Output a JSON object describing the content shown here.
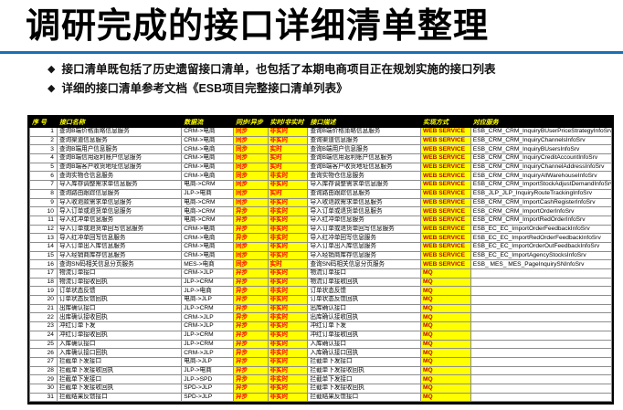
{
  "slide": {
    "title": "调研完成的接口详细清单整理",
    "bullets": [
      "接口清单既包括了历史遗留接口清单，也包括了本期电商项目正在规划实施的接口列表",
      "详细的接口清单参考文档《ESB项目完整接口清单列表》"
    ],
    "accent_color": "#1a6fba"
  },
  "table": {
    "columns": [
      "序 号",
      "接口名称",
      "数据流",
      "同步/异步",
      "实时/非实时",
      "接口描述",
      "实现方式",
      "对应服务"
    ],
    "header_bg": "#000000",
    "header_text_color": "#ffff00",
    "highlight_bg": "#ffff00",
    "sync_text_color": "#ff0000",
    "impl_text_color": "#c00000",
    "rows": [
      [
        1,
        "查询B端价格策略信息服务",
        "CRM->电商",
        "同步",
        "非实时",
        "查询B端价格策略信息服务",
        "WEB SERVICE",
        "ESB_CRM_CRM_InquiryBUserPriceStrategyInfoSrv"
      ],
      [
        2,
        "查询渠道信息服务",
        "CRM->电商",
        "同步",
        "非实时",
        "查询渠道信息服务",
        "WEB SERVICE",
        "ESB_CRM_CRM_InquiryChannelsInfoSrv"
      ],
      [
        3,
        "查询B端用户信息服务",
        "CRM->电商",
        "同步",
        "实时",
        "查询B端用户信息服务",
        "WEB SERVICE",
        "ESB_CRM_CRM_InquiryBUsersInfoSrv"
      ],
      [
        4,
        "查询B端信用返利账户信息服务",
        "CRM->电商",
        "同步",
        "实时",
        "查询B端信用返利账户信息服务",
        "WEB SERVICE",
        "ESB_CRM_CRM_InquiryCreditAccountInfoSrv"
      ],
      [
        5,
        "查询B端客户收货地址信息服务",
        "CRM->电商",
        "同步",
        "实时",
        "查询B端客户收货地址信息服务",
        "WEB SERVICE",
        "ESB_CRM_CRM_InquiryChannelAddressInfoSrv"
      ],
      [
        6,
        "查询实物仓信息服务",
        "CRM->电商",
        "同步",
        "非实时",
        "查询实物仓信息服务",
        "WEB SERVICE",
        "ESB_CRM_CRM_InquiryAllWarehouseInfoSrv"
      ],
      [
        7,
        "导入库存调整需求单信息服务",
        "电商->CRM",
        "同步",
        "非实时",
        "导入库存调整需求单信息服务",
        "WEB SERVICE",
        "ESB_CRM_CRM_ImportStockAdjustDemandInfoSrv"
      ],
      [
        8,
        "查询路由跟踪信息服务",
        "JLP->电商",
        "同步",
        "实时",
        "查询路由跟踪信息服务",
        "WEB SERVICE",
        "ESB_JLP_JLP_InquiryRouteTrackingInfoSrv"
      ],
      [
        9,
        "导入收退款需求单信息服务",
        "电商->CRM",
        "同步",
        "非实时",
        "导入收退款需求单信息服务",
        "WEB SERVICE",
        "ESB_CRM_CRM_ImportCashRegisterInfoSrv"
      ],
      [
        10,
        "导入订单或退货单信息服务",
        "电商->CRM",
        "异步",
        "非实时",
        "导入订单或退货单信息服务",
        "WEB SERVICE",
        "ESB_CRM_CRM_ImportOrderInfoSrv"
      ],
      [
        11,
        "导入红冲单信息服务",
        "电商->CRM",
        "异步",
        "非实时",
        "导入红冲单信息服务",
        "WEB SERVICE",
        "ESB_CRM_CRM_ImportRedOrderInfoSrv"
      ],
      [
        12,
        "导入订单或退货单回写信息服务",
        "CRM->电商",
        "异步",
        "非实时",
        "导入订单或退货单回写信息服务",
        "WEB SERVICE",
        "ESB_EC_EC_ImportOrderFeedbackInfoSrv"
      ],
      [
        13,
        "导入红冲单回写信息服务",
        "CRM->电商",
        "异步",
        "非实时",
        "导入红冲单回写信息服务",
        "WEB SERVICE",
        "ESB_EC_EC_ImportRedOrderFeedbackInfoSrv"
      ],
      [
        14,
        "导入订单出入库信息服务",
        "CRM->电商",
        "同步",
        "非实时",
        "导入订单出入库信息服务",
        "WEB SERVICE",
        "ESB_EC_EC_ImportOrderOutFeedbackInfoSrv"
      ],
      [
        15,
        "导入经销商库存信息服务",
        "CRM->电商",
        "同步",
        "非实时",
        "导入经销商库存信息服务",
        "WEB SERVICE",
        "ESB_EC_EC_ImportAgencyStocksInfoSrv"
      ],
      [
        16,
        "查询SN码相关信息分页服务",
        "MES->电商",
        "同步",
        "实时",
        "查询SN码相关信息分页服务",
        "WEB SERVICE",
        "ESB_ MES_ MES_PageInquirySNInfoSrv"
      ],
      [
        17,
        "物流订单接口",
        "CRM->JLP",
        "异步",
        "非实时",
        "物流订单接口",
        "MQ",
        ""
      ],
      [
        18,
        "物流订单接收回执",
        "JLP->CRM",
        "异步",
        "非实时",
        "物流订单接收回执",
        "MQ",
        ""
      ],
      [
        19,
        "订单状态反馈",
        "JLP->电商",
        "异步",
        "非实时",
        "订单状态反馈",
        "MQ",
        ""
      ],
      [
        20,
        "订单状态反馈回执",
        "电商->JLP",
        "异步",
        "非实时",
        "订单状态反馈回执",
        "MQ",
        ""
      ],
      [
        21,
        "出库确认接口",
        "JLP->CRM",
        "异步",
        "非实时",
        "出库确认接口",
        "MQ",
        ""
      ],
      [
        22,
        "出库确认接收回执",
        "CRM->JLP",
        "异步",
        "非实时",
        "出库确认接收回执",
        "MQ",
        ""
      ],
      [
        23,
        "冲红订单下发",
        "CRM->JLP",
        "异步",
        "非实时",
        "冲红订单下发",
        "MQ",
        ""
      ],
      [
        24,
        "冲红订单接收回执",
        "JLP->CRM",
        "异步",
        "非实时",
        "冲红订单接收回执",
        "MQ",
        ""
      ],
      [
        25,
        "入库确认接口",
        "JLP->CRM",
        "异步",
        "非实时",
        "入库确认接口",
        "MQ",
        ""
      ],
      [
        26,
        "入库确认接口回执",
        "CRM->JLP",
        "异步",
        "非实时",
        "入库确认接口回执",
        "MQ",
        ""
      ],
      [
        27,
        "拦截单下发接口",
        "电商->JLP",
        "异步",
        "非实时",
        "拦截单下发接口",
        "MQ",
        ""
      ],
      [
        28,
        "拦截单下发接收回执",
        "JLP->电商",
        "异步",
        "非实时",
        "拦截单下发接收回执",
        "MQ",
        ""
      ],
      [
        29,
        "拦截单下发接口",
        "JLP->SPD",
        "异步",
        "非实时",
        "拦截单下发接口",
        "MQ",
        ""
      ],
      [
        30,
        "拦截单下发接收回执",
        "SPD->JLP",
        "异步",
        "非实时",
        "拦截单下发接收回执",
        "MQ",
        ""
      ],
      [
        31,
        "拦截结果反馈接口",
        "SPD->JLP",
        "异步",
        "非实时",
        "拦截结果反馈接口",
        "MQ",
        ""
      ]
    ]
  }
}
